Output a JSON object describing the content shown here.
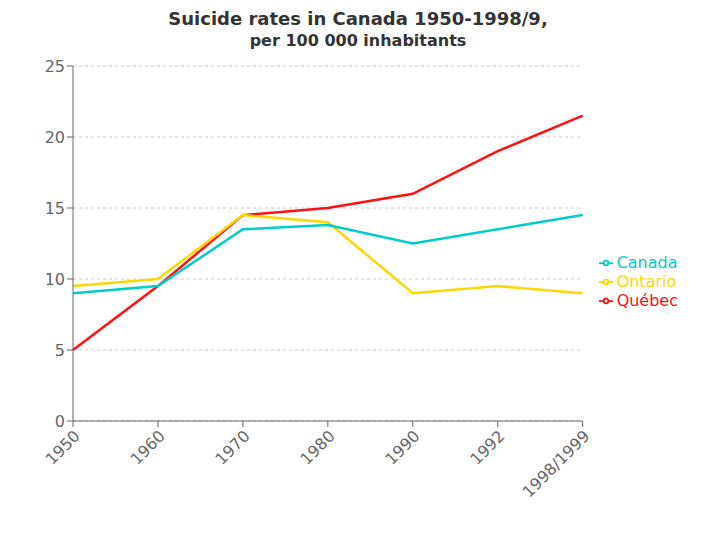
{
  "chart_data": {
    "type": "line",
    "title": "Suicide rates in Canada 1950-1998/9,",
    "subtitle": "per 100 000 inhabitants",
    "categories": [
      "1950",
      "1960",
      "1970",
      "1980",
      "1990",
      "1992",
      "1998/1999"
    ],
    "series": [
      {
        "name": "Québec",
        "color": "#FF1010",
        "values": [
          5.0,
          9.5,
          14.5,
          15.0,
          16.0,
          19.0,
          21.5
        ]
      },
      {
        "name": "Ontario",
        "color": "#FFD700",
        "values": [
          9.5,
          10.0,
          14.5,
          14.0,
          9.0,
          9.5,
          9.0
        ]
      },
      {
        "name": "Canada",
        "color": "#00CCCC",
        "values": [
          9.0,
          9.5,
          13.5,
          13.8,
          12.5,
          13.5,
          14.5
        ]
      }
    ],
    "ylim": [
      0,
      25
    ],
    "yticks": [
      0,
      5,
      10,
      15,
      20,
      25
    ],
    "grid": true,
    "legend": "right"
  }
}
